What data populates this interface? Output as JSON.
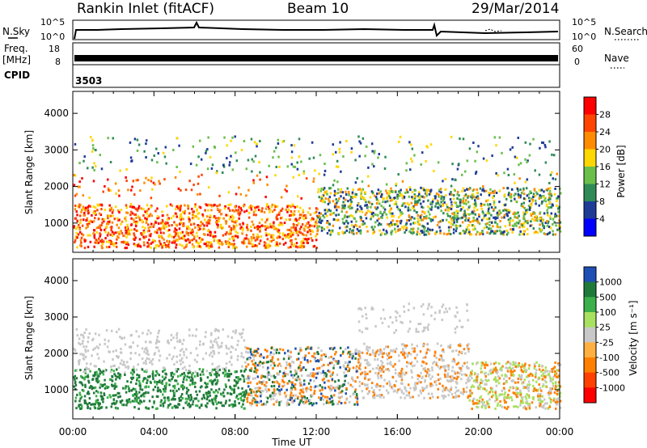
{
  "header": {
    "title": "Rankin Inlet (fitACF)",
    "beam": "Beam 10",
    "date": "29/Mar/2014"
  },
  "side_labels": {
    "nsky": "N.Sky",
    "freq": "Freq.",
    "freq_unit": "[MHz]",
    "cpid": "CPID",
    "cpid_value": "3503",
    "nsearch": "N.Search",
    "nave": "Nave"
  },
  "colors": {
    "power": [
      "#0000ff",
      "#1e3c96",
      "#2e8b57",
      "#6abf4b",
      "#ffd700",
      "#ff8c00",
      "#ff4500",
      "#ff0000"
    ],
    "velocity": [
      "#1e4fb4",
      "#1f7a3a",
      "#3cb04a",
      "#a8e060",
      "#c8c8c8",
      "#ffb040",
      "#ff7f00",
      "#ff4000",
      "#ff0000"
    ],
    "ground_scatter": "#c8c8c8"
  },
  "chart_data": [
    {
      "type": "line",
      "panel": "noise",
      "x_range": [
        "00:00",
        "24:00"
      ],
      "left_ticks": [
        "10^5",
        "10^0"
      ],
      "right_ticks": [
        "10^5",
        "10^0"
      ],
      "note_values": "N.Sky near 10^1 throughout; spikes near 06:00 and 18:00"
    },
    {
      "type": "line",
      "panel": "frequency",
      "left_ticks": [
        "18",
        "8"
      ],
      "right_ticks": [
        "60",
        "0"
      ],
      "freq_mhz_approx": 10.5,
      "nave_approx": 20
    },
    {
      "type": "heatmap",
      "panel": "power",
      "xlabel": "",
      "ylabel": "Slant Range [km]",
      "y_ticks": [
        "1000",
        "2000",
        "3000",
        "4000"
      ],
      "ylim_km": [
        200,
        4600
      ],
      "colorbar_label": "Power [dB]",
      "colorbar_ticks": [
        "4",
        "8",
        "12",
        "16",
        "20",
        "24",
        "28"
      ]
    },
    {
      "type": "heatmap",
      "panel": "velocity",
      "xlabel": "Time UT",
      "ylabel": "Slant Range [km]",
      "y_ticks": [
        "1000",
        "2000",
        "3000",
        "4000"
      ],
      "ylim_km": [
        200,
        4600
      ],
      "x_ticks": [
        "00:00",
        "04:00",
        "08:00",
        "12:00",
        "16:00",
        "20:00",
        "00:00"
      ],
      "colorbar_label": "Velocity [m s⁻¹]",
      "colorbar_ticks": [
        "1000",
        "500",
        "100",
        "25",
        "-25",
        "-100",
        "-500",
        "-1000"
      ]
    }
  ]
}
